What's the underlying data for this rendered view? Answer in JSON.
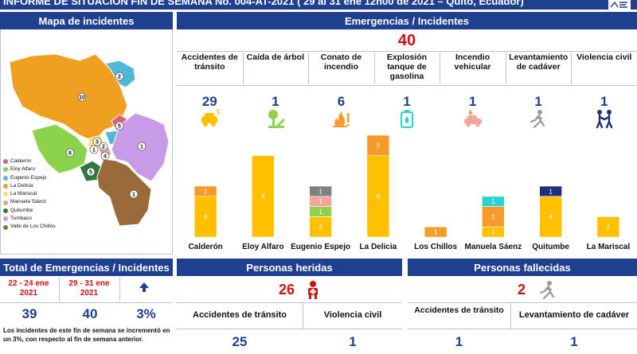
{
  "header": {
    "title": "INFORME DE SITUACIÓN FIN DE SEMANA No. 004-AT-2021 ( 29 al 31 ene 12h00 de 2021 – Quito, Ecuador)"
  },
  "map": {
    "title": "Mapa de incidentes",
    "region_counts": [
      "2",
      "10",
      "5",
      "3",
      "2",
      "1",
      "1",
      "8",
      "4",
      "5",
      "1"
    ],
    "legend": [
      {
        "label": "Calderón",
        "color": "#e0607a"
      },
      {
        "label": "Eloy Alfaro",
        "color": "#8ad34a"
      },
      {
        "label": "Eugenio Espejo",
        "color": "#4fb8d8"
      },
      {
        "label": "La Delicia",
        "color": "#f0a020"
      },
      {
        "label": "La Mariscal",
        "color": "#f7e27a"
      },
      {
        "label": "Manuela Sáenz",
        "color": "#e8a090"
      },
      {
        "label": "Quitumbe",
        "color": "#2f7a3a"
      },
      {
        "label": "Tumbaco",
        "color": "#c79be8"
      },
      {
        "label": "Valle de Los Chillos",
        "color": "#9a6a3a"
      }
    ]
  },
  "emergencias": {
    "title": "Emergencias / Incidentes",
    "total": "40",
    "categories": [
      {
        "label": "Accidentes de tránsito",
        "count": "29",
        "icon": "car-crash-icon"
      },
      {
        "label": "Caída de árbol",
        "count": "1",
        "icon": "fallen-tree-icon"
      },
      {
        "label": "Conato de incendio",
        "count": "6",
        "icon": "fire-icon"
      },
      {
        "label": "Explosión tanque de gasolina",
        "count": "1",
        "icon": "gas-tank-icon"
      },
      {
        "label": "Incendio vehicular",
        "count": "1",
        "icon": "car-fire-icon"
      },
      {
        "label": "Levantamiento de cadáver",
        "count": "1",
        "icon": "body-icon"
      },
      {
        "label": "Violencia civil",
        "count": "1",
        "icon": "violence-icon"
      }
    ]
  },
  "chart_data": {
    "type": "bar",
    "stacked": true,
    "categories": [
      "Calderón",
      "Eloy Alfaro",
      "Eugenio Espejo",
      "La Delicia",
      "Los Chillos",
      "Manuela Sáenz",
      "Quitumbe",
      "La Mariscal"
    ],
    "series": [
      {
        "color": "#ffc000",
        "values": [
          4,
          8,
          2,
          8,
          0,
          1,
          4,
          2
        ]
      },
      {
        "color": "#f79a2a",
        "values": [
          1,
          0,
          0,
          2,
          1,
          2,
          0,
          0
        ]
      },
      {
        "color": "#92d050",
        "values": [
          0,
          0,
          1,
          0,
          0,
          0,
          0,
          0
        ]
      },
      {
        "color": "#f4a49a",
        "values": [
          0,
          0,
          1,
          0,
          0,
          0,
          0,
          0
        ]
      },
      {
        "color": "#808080",
        "values": [
          0,
          0,
          1,
          0,
          0,
          0,
          0,
          0
        ]
      },
      {
        "color": "#2ad2d2",
        "values": [
          0,
          0,
          0,
          0,
          0,
          1,
          0,
          0
        ]
      },
      {
        "color": "#1f2f7a",
        "values": [
          0,
          0,
          0,
          0,
          0,
          0,
          1,
          0
        ]
      }
    ],
    "ylim": [
      0,
      10
    ]
  },
  "total": {
    "title": "Total de Emergencias / Incidentes",
    "period1": "22 - 24 ene 2021",
    "period2": "29 - 31 ene 2021",
    "value1": "39",
    "value2": "40",
    "change": "3%",
    "note": "Los incidentes de este fin de semana se incrementó en un 3%, con respecto al fin de semana anterior."
  },
  "heridas": {
    "title": "Personas heridas",
    "total": "26",
    "cols": [
      {
        "label": "Accidentes de tránsito",
        "value": "25"
      },
      {
        "label": "Violencia civil",
        "value": "1"
      }
    ]
  },
  "fallecidas": {
    "title": "Personas fallecidas",
    "total": "2",
    "cols": [
      {
        "label": "Accidentes de tránsito",
        "value": "1"
      },
      {
        "label": "Levantamiento de cadáver",
        "value": "1"
      }
    ]
  }
}
